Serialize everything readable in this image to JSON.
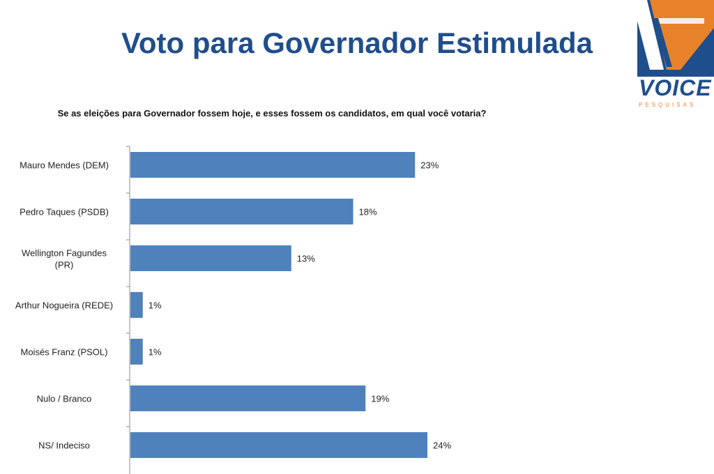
{
  "title": "Voto para Governador Estimulada",
  "question": "Se as eleições para Governador fossem hoje, e esses fossem os candidatos, em qual você votaria?",
  "logo": {
    "wordmark": "VOICE",
    "sub": "PESQUISAS"
  },
  "colors": {
    "bar": "#4f81bd",
    "title": "#1f4e8c",
    "logo_blue": "#1f4e8c",
    "logo_orange": "#e8822a"
  },
  "chart_data": {
    "type": "bar",
    "orientation": "horizontal",
    "categories": [
      [
        "Mauro Mendes  (DEM)"
      ],
      [
        "Pedro Taques  (PSDB)"
      ],
      [
        "Wellington Fagundes",
        "(PR)"
      ],
      [
        "Arthur Nogueira  (REDE)"
      ],
      [
        "Moisés Franz  (PSOL)"
      ],
      [
        "Nulo / Branco"
      ],
      [
        "NS/ Indeciso"
      ]
    ],
    "values": [
      23,
      18,
      13,
      1,
      1,
      19,
      24
    ],
    "value_labels": [
      "23%",
      "18%",
      "13%",
      "1%",
      "1%",
      "19%",
      "24%"
    ],
    "unit": "%",
    "xlim": [
      0,
      24
    ],
    "grid": false,
    "legend": "none"
  }
}
